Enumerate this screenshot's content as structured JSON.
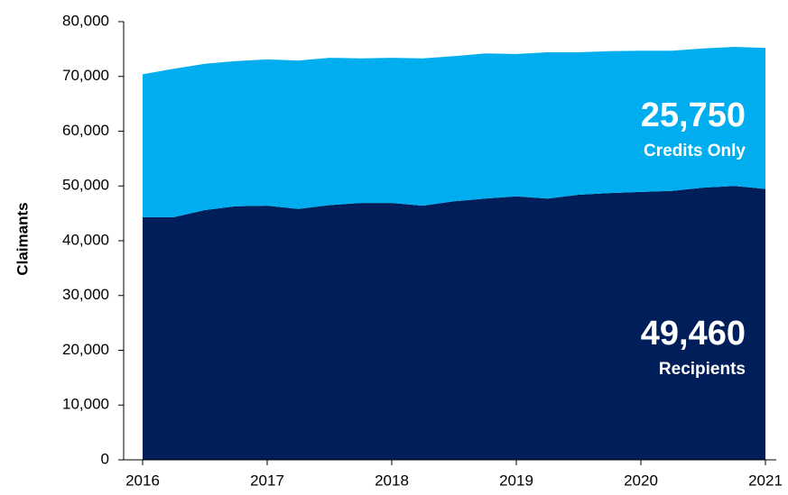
{
  "chart_data": {
    "type": "stacked_area",
    "y_label": "Claimants",
    "x": [
      2016,
      2016.25,
      2016.5,
      2016.75,
      2017,
      2017.25,
      2017.5,
      2017.75,
      2018,
      2018.25,
      2018.5,
      2018.75,
      2019,
      2019.25,
      2019.5,
      2019.75,
      2020,
      2020.25,
      2020.5,
      2020.75,
      2021
    ],
    "series": [
      {
        "name": "Recipients",
        "color": "#001e5a",
        "values": [
          44300,
          44300,
          45600,
          46300,
          46400,
          45800,
          46500,
          46900,
          46900,
          46400,
          47200,
          47700,
          48100,
          47700,
          48400,
          48700,
          48900,
          49100,
          49700,
          50000,
          49460
        ]
      },
      {
        "name": "Credits Only",
        "color": "#00aeef",
        "values": [
          26100,
          27100,
          26700,
          26500,
          26700,
          27100,
          26900,
          26400,
          26500,
          26900,
          26500,
          26500,
          26000,
          26700,
          26000,
          25900,
          25800,
          25600,
          25400,
          25400,
          25750
        ]
      }
    ],
    "annotations": [
      {
        "text": "25,750",
        "sub": "Credits Only"
      },
      {
        "text": "49,460",
        "sub": "Recipients"
      }
    ],
    "xlim": [
      2016,
      2021
    ],
    "xticks": [
      2016,
      2017,
      2018,
      2019,
      2020,
      2021
    ],
    "ylim": [
      0,
      80000
    ],
    "yticks": [
      0,
      {
        "value": 10000,
        "label": "10,000"
      },
      {
        "value": 20000,
        "label": "20,000"
      },
      {
        "value": 30000,
        "label": "30,000"
      },
      {
        "value": 40000,
        "label": "40,000"
      },
      {
        "value": 50000,
        "label": "50,000"
      },
      {
        "value": 60000,
        "label": "60,000"
      },
      {
        "value": 70000,
        "label": "70,000"
      },
      {
        "value": 80000,
        "label": "80,000"
      }
    ]
  }
}
